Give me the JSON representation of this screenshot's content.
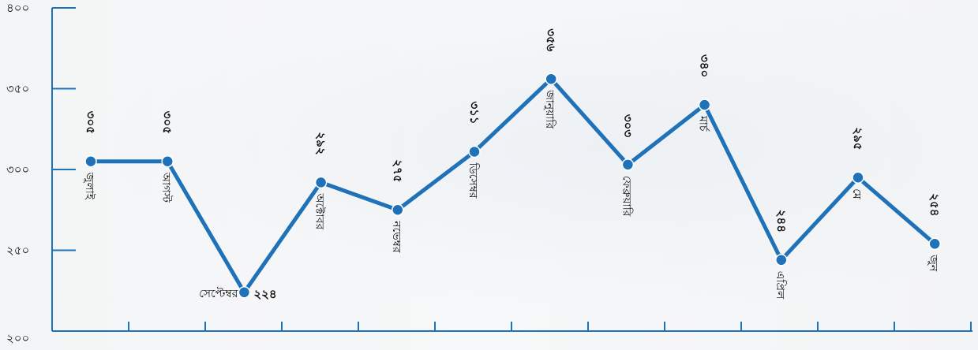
{
  "chart_data": {
    "type": "line",
    "title": "",
    "xlabel": "",
    "ylabel": "",
    "ylim": [
      200,
      400
    ],
    "yticks": [
      200,
      250,
      300,
      350,
      400
    ],
    "ytick_labels": [
      "২০০",
      "২৫০",
      "৩০০",
      "৩৫০",
      "৪০০"
    ],
    "categories": [
      "জুলাই",
      "আগস্ট",
      "সেপ্টেম্বর",
      "অক্টোবর",
      "নভেম্বর",
      "ডিসেম্বর",
      "জানুয়ারি",
      "ফেব্রুয়ারি",
      "মার্চ",
      "এপ্রিল",
      "মে",
      "জুন"
    ],
    "values": [
      305,
      305,
      224,
      292,
      275,
      311,
      356,
      303,
      340,
      244,
      295,
      254
    ],
    "value_labels": [
      "৩০৫",
      "৩০৫",
      "২২৪",
      "২৯২",
      "২৭৫",
      "৩১১",
      "৩৫৬",
      "৩০৩",
      "৩৪০",
      "২৪৪",
      "২৯৫",
      "২৫৪"
    ],
    "grid": false,
    "legend": "none",
    "colors": {
      "line": "#1f72b8",
      "point": "#1f72b8",
      "axis": "#1f72b8",
      "text": "#111111"
    }
  }
}
